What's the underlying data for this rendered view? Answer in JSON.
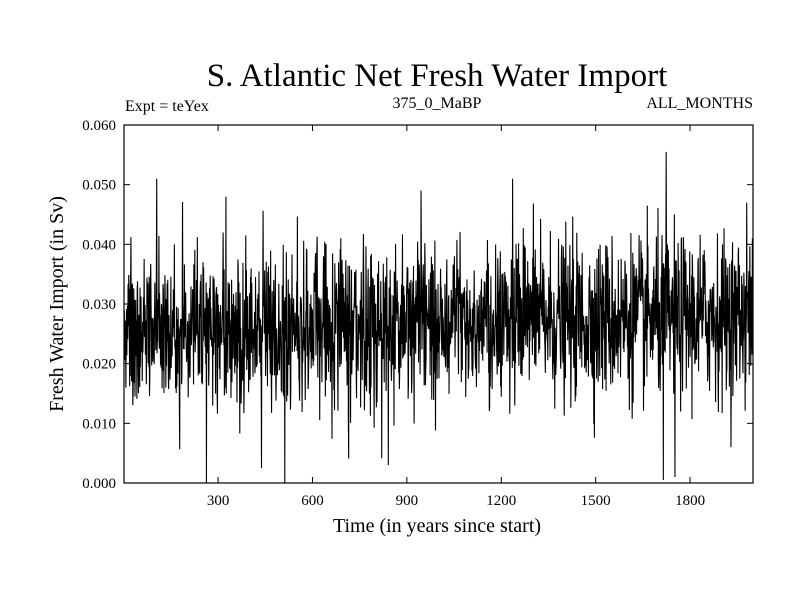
{
  "chart_data": {
    "type": "line",
    "title": "S. Atlantic Net Fresh Water Import",
    "experiment": "Expt = teYex",
    "period": "375_0_MaBP",
    "months": "ALL_MONTHS",
    "xlabel": "Time (in years since start)",
    "ylabel": "Fresh Water Import (in Sv)",
    "xlim": [
      1,
      2000
    ],
    "ylim": [
      0.0,
      0.06
    ],
    "xticks": [
      300,
      600,
      900,
      1200,
      1500,
      1800
    ],
    "yticks": [
      0.0,
      0.01,
      0.02,
      0.03,
      0.04,
      0.05,
      0.06
    ],
    "ytick_labels": [
      "0.000",
      "0.010",
      "0.020",
      "0.030",
      "0.040",
      "0.050",
      "0.060"
    ],
    "series": [
      {
        "name": "Net fresh water import",
        "description": "annual values, noisy around ~0.026 Sv (slight upward drift to ~0.028 Sv); range approx 0.000 to 0.056 Sv",
        "notable_points": [
          {
            "x": 105,
            "y": 0.051
          },
          {
            "x": 263,
            "y": 0.0
          },
          {
            "x": 325,
            "y": 0.048
          },
          {
            "x": 438,
            "y": 0.0025
          },
          {
            "x": 512,
            "y": 0.0
          },
          {
            "x": 841,
            "y": 0.003
          },
          {
            "x": 945,
            "y": 0.049
          },
          {
            "x": 1236,
            "y": 0.051
          },
          {
            "x": 1724,
            "y": 0.0555
          },
          {
            "x": 1715,
            "y": 0.0005
          },
          {
            "x": 1752,
            "y": 0.001
          },
          {
            "x": 1980,
            "y": 0.047
          }
        ]
      }
    ]
  }
}
